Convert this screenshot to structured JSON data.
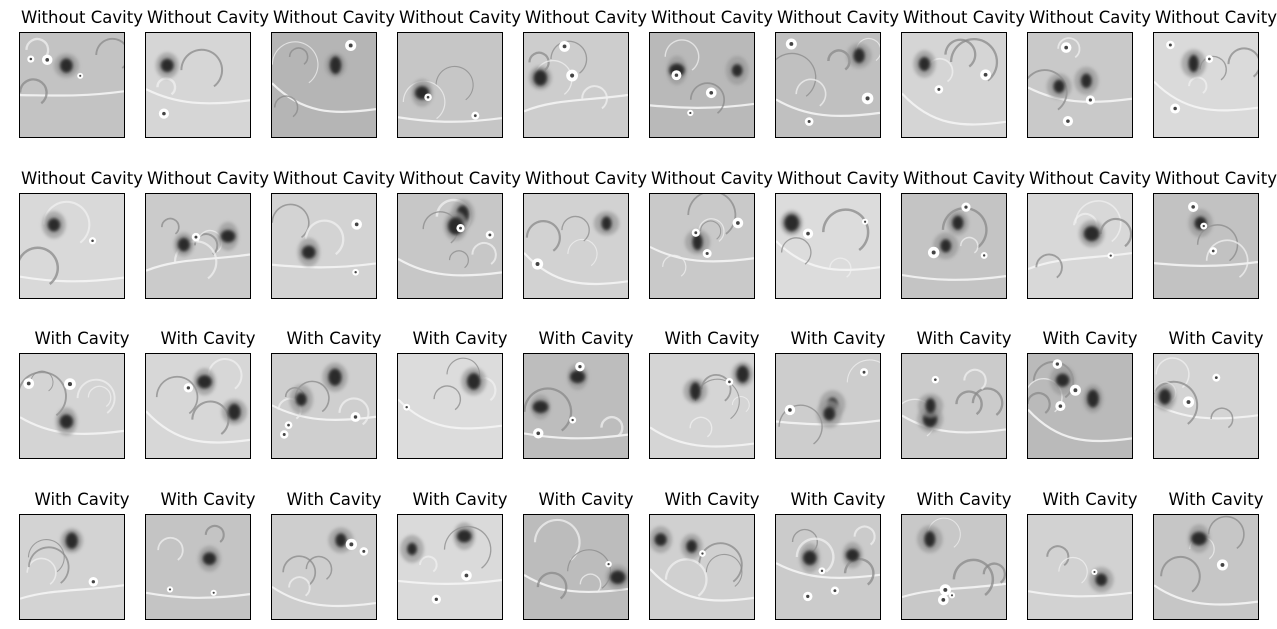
{
  "figure": {
    "rows": [
      {
        "panels": [
          {
            "title": "Without Cavity",
            "bg": "#c3c3c3"
          },
          {
            "title": "Without Cavity",
            "bg": "#d6d6d6"
          },
          {
            "title": "Without Cavity",
            "bg": "#b5b5b5"
          },
          {
            "title": "Without Cavity",
            "bg": "#c6c6c6"
          },
          {
            "title": "Without Cavity",
            "bg": "#cdcdcd"
          },
          {
            "title": "Without Cavity",
            "bg": "#b9b9b9"
          },
          {
            "title": "Without Cavity",
            "bg": "#c0c0c0"
          },
          {
            "title": "Without Cavity",
            "bg": "#d5d5d5"
          },
          {
            "title": "Without Cavity",
            "bg": "#c9c9c9"
          },
          {
            "title": "Without Cavity",
            "bg": "#dadada"
          }
        ]
      },
      {
        "panels": [
          {
            "title": "Without Cavity",
            "bg": "#d9d9d9"
          },
          {
            "title": "Without Cavity",
            "bg": "#cbcbcb"
          },
          {
            "title": "Without Cavity",
            "bg": "#d3d3d3"
          },
          {
            "title": "Without Cavity",
            "bg": "#c7c7c7"
          },
          {
            "title": "Without Cavity",
            "bg": "#d2d2d2"
          },
          {
            "title": "Without Cavity",
            "bg": "#c9c9c9"
          },
          {
            "title": "Without Cavity",
            "bg": "#dcdcdc"
          },
          {
            "title": "Without Cavity",
            "bg": "#c4c4c4"
          },
          {
            "title": "Without Cavity",
            "bg": "#d8d8d8"
          },
          {
            "title": "Without Cavity",
            "bg": "#c2c2c2"
          }
        ]
      },
      {
        "panels": [
          {
            "title": "With Cavity",
            "bg": "#d4d4d4"
          },
          {
            "title": "With Cavity",
            "bg": "#d7d7d7"
          },
          {
            "title": "With Cavity",
            "bg": "#cfcfcf"
          },
          {
            "title": "With Cavity",
            "bg": "#dcdcdc"
          },
          {
            "title": "With Cavity",
            "bg": "#bdbdbd"
          },
          {
            "title": "With Cavity",
            "bg": "#d5d5d5"
          },
          {
            "title": "With Cavity",
            "bg": "#cdcdcd"
          },
          {
            "title": "With Cavity",
            "bg": "#cbcbcb"
          },
          {
            "title": "With Cavity",
            "bg": "#bababa"
          },
          {
            "title": "With Cavity",
            "bg": "#d4d4d4"
          }
        ]
      },
      {
        "panels": [
          {
            "title": "With Cavity",
            "bg": "#d3d3d3"
          },
          {
            "title": "With Cavity",
            "bg": "#c4c4c4"
          },
          {
            "title": "With Cavity",
            "bg": "#cecece"
          },
          {
            "title": "With Cavity",
            "bg": "#dadada"
          },
          {
            "title": "With Cavity",
            "bg": "#bcbcbc"
          },
          {
            "title": "With Cavity",
            "bg": "#d0d0d0"
          },
          {
            "title": "With Cavity",
            "bg": "#cbcbcb"
          },
          {
            "title": "With Cavity",
            "bg": "#c8c8c8"
          },
          {
            "title": "With Cavity",
            "bg": "#d2d2d2"
          },
          {
            "title": "With Cavity",
            "bg": "#c6c6c6"
          }
        ]
      }
    ]
  }
}
